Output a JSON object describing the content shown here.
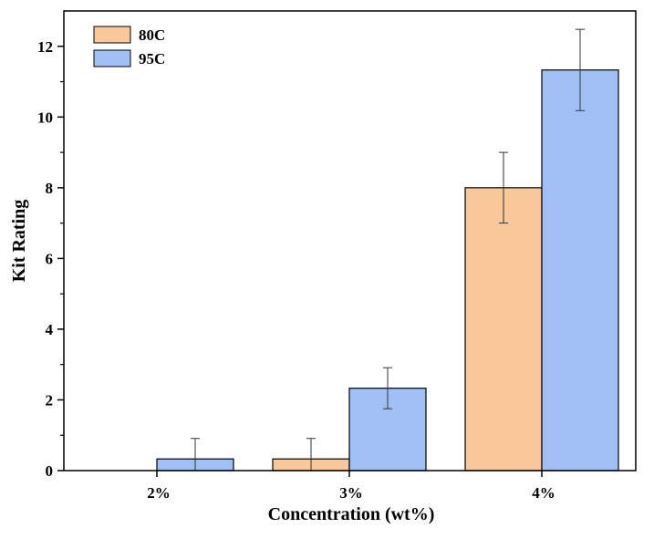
{
  "chart_data": {
    "type": "bar",
    "title": "",
    "xlabel": "Concentration (wt%)",
    "ylabel": "Kit Rating",
    "categories": [
      "2%",
      "3%",
      "4%"
    ],
    "ylim": [
      0,
      13
    ],
    "yticks": [
      0,
      2,
      4,
      6,
      8,
      10,
      12
    ],
    "grid": false,
    "legend_position": "top-left",
    "series": [
      {
        "name": "80C",
        "color": "#f9c89a",
        "values": [
          0,
          0.33,
          8.0
        ],
        "errors": [
          0,
          0.58,
          1.0
        ]
      },
      {
        "name": "95C",
        "color": "#a0bff5",
        "values": [
          0.33,
          2.33,
          11.33
        ],
        "errors": [
          0.58,
          0.58,
          1.15
        ]
      }
    ]
  }
}
